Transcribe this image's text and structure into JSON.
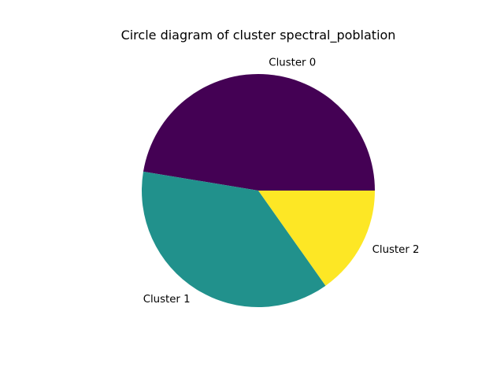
{
  "chart_data": {
    "type": "pie",
    "title": "Circle diagram of cluster spectral_poblation",
    "labels": [
      "Cluster 0",
      "Cluster 1",
      "Cluster 2"
    ],
    "values": [
      47.4,
      37.4,
      15.2
    ],
    "colors": [
      "#440154",
      "#21918c",
      "#fde725"
    ],
    "start_angle_deg": 0,
    "direction": "counterclockwise"
  }
}
